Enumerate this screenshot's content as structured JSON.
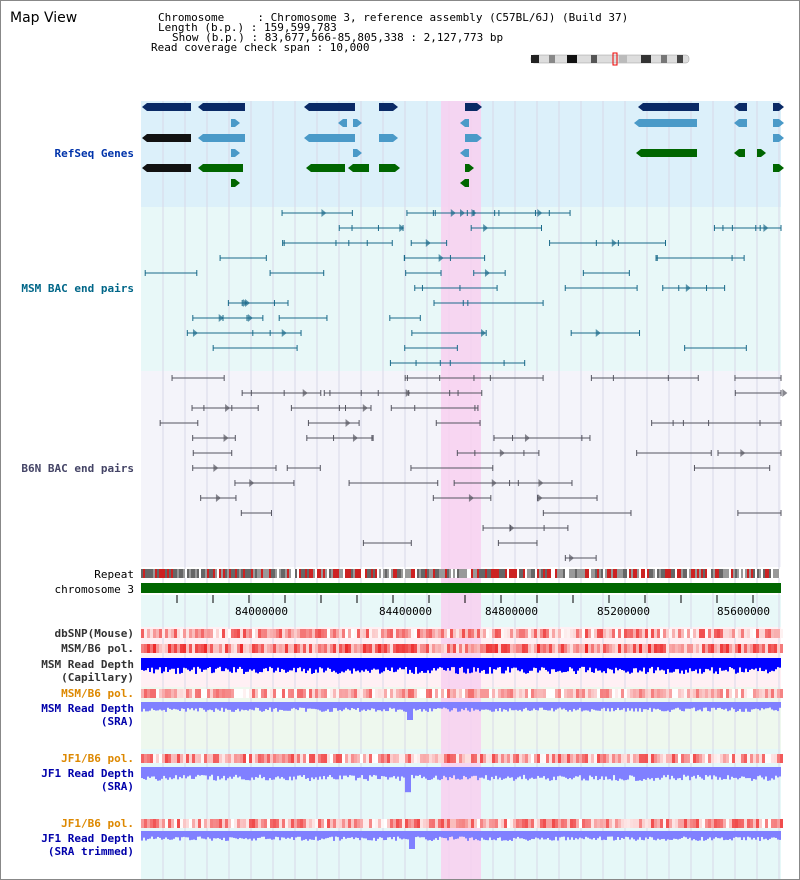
{
  "title": "Map View",
  "info": {
    "chromosome": "Chromosome     : Chromosome 3, reference assembly (C57BL/6J) (Build 37)",
    "length": "Length (b.p.) : 159,599,783",
    "show": "Show (b.p.) : 83,677,566-85,805,338 : 2,127,773 bp",
    "span": "Read coverage check span : 10,000"
  },
  "tracks": {
    "refseq": "RefSeq Genes",
    "msm_bac": "MSM BAC end pairs",
    "b6n_bac": "B6N BAC end pairs",
    "repeat": "Repeat",
    "chromosome": "chromosome 3",
    "dbsnp": "dbSNP(Mouse)",
    "msm_b6_pol": "MSM/B6 pol.",
    "msm_read_depth": "MSM Read Depth",
    "capillary": "(Capillary)",
    "msm_b6_pol2": "MSM/B6 pol.",
    "msm_read_depth_sra": "MSM Read Depth",
    "sra": "(SRA)",
    "jf1_b6_pol": "JF1/B6 pol.",
    "jf1_read_depth": "JF1 Read Depth",
    "sra2": "(SRA)",
    "jf1_b6_pol2": "JF1/B6 pol.",
    "jf1_read_depth_trim": "JF1 Read Depth",
    "sra_trimmed": "(SRA trimmed)"
  },
  "axis_ticks": [
    "84000000",
    "84400000",
    "84800000",
    "85200000",
    "85600000"
  ],
  "colors": {
    "refseq_bg": "#dcf0fa",
    "bac_bg": "#e8f8f8",
    "b6n_bg": "#f4f4fa",
    "highlight": "#f8d0f0",
    "chromosome": "#006600",
    "depth_blue": "#0000ff",
    "depth_light": "#8080ff",
    "snp_red": "#f06060"
  }
}
